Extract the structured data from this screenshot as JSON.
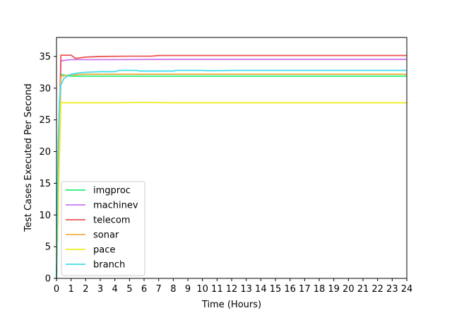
{
  "chart_data": {
    "type": "line",
    "xlabel": "Time (Hours)",
    "ylabel": "Test Cases Executed Per Second",
    "xlim": [
      0,
      24
    ],
    "ylim": [
      0,
      38
    ],
    "xticks": [
      0,
      1,
      2,
      3,
      4,
      5,
      6,
      7,
      8,
      9,
      10,
      11,
      12,
      13,
      14,
      15,
      16,
      17,
      18,
      19,
      20,
      21,
      22,
      23,
      24
    ],
    "yticks": [
      0,
      5,
      10,
      15,
      20,
      25,
      30,
      35
    ],
    "grid": false,
    "legend_position": "lower-left",
    "series": [
      {
        "name": "imgproc",
        "color": "#22ee77",
        "points": [
          [
            0,
            0
          ],
          [
            0.3,
            32.2
          ],
          [
            0.6,
            32.0
          ],
          [
            1,
            31.9
          ],
          [
            2,
            31.9
          ],
          [
            4,
            31.9
          ],
          [
            8,
            31.9
          ],
          [
            12,
            31.9
          ],
          [
            16,
            31.9
          ],
          [
            20,
            31.9
          ],
          [
            24,
            31.9
          ]
        ]
      },
      {
        "name": "machinev",
        "color": "#cc77ee",
        "points": [
          [
            0,
            0
          ],
          [
            0.3,
            34.3
          ],
          [
            0.6,
            34.4
          ],
          [
            1,
            34.5
          ],
          [
            2,
            34.5
          ],
          [
            4,
            34.5
          ],
          [
            8,
            34.55
          ],
          [
            12,
            34.55
          ],
          [
            16,
            34.55
          ],
          [
            20,
            34.55
          ],
          [
            24,
            34.55
          ]
        ]
      },
      {
        "name": "telecom",
        "color": "#ee5555",
        "points": [
          [
            0,
            0
          ],
          [
            0.3,
            35.2
          ],
          [
            0.6,
            35.2
          ],
          [
            1.0,
            35.2
          ],
          [
            1.3,
            34.7
          ],
          [
            2,
            34.9
          ],
          [
            3,
            35.0
          ],
          [
            5,
            35.05
          ],
          [
            6.5,
            35.05
          ],
          [
            7,
            35.15
          ],
          [
            10,
            35.15
          ],
          [
            14,
            35.15
          ],
          [
            18,
            35.15
          ],
          [
            24,
            35.15
          ]
        ]
      },
      {
        "name": "sonar",
        "color": "#f0b040",
        "points": [
          [
            0,
            0
          ],
          [
            0.3,
            31.8
          ],
          [
            0.6,
            32.0
          ],
          [
            1,
            32.1
          ],
          [
            2,
            32.2
          ],
          [
            4,
            32.2
          ],
          [
            8,
            32.2
          ],
          [
            12,
            32.2
          ],
          [
            16,
            32.2
          ],
          [
            20,
            32.2
          ],
          [
            24,
            32.2
          ]
        ]
      },
      {
        "name": "pace",
        "color": "#eeee22",
        "points": [
          [
            0,
            0
          ],
          [
            0.3,
            27.7
          ],
          [
            1,
            27.7
          ],
          [
            4,
            27.7
          ],
          [
            6,
            27.75
          ],
          [
            8,
            27.7
          ],
          [
            12,
            27.7
          ],
          [
            16,
            27.7
          ],
          [
            20,
            27.7
          ],
          [
            24,
            27.7
          ]
        ]
      },
      {
        "name": "branch",
        "color": "#44ddee",
        "points": [
          [
            0,
            0
          ],
          [
            0.1,
            20
          ],
          [
            0.2,
            28
          ],
          [
            0.3,
            30.5
          ],
          [
            0.5,
            31.5
          ],
          [
            0.8,
            32.0
          ],
          [
            1,
            32.2
          ],
          [
            1.5,
            32.4
          ],
          [
            2,
            32.5
          ],
          [
            3,
            32.6
          ],
          [
            4,
            32.6
          ],
          [
            4.3,
            32.8
          ],
          [
            5.5,
            32.8
          ],
          [
            5.7,
            32.7
          ],
          [
            8,
            32.7
          ],
          [
            8.2,
            32.8
          ],
          [
            10,
            32.8
          ],
          [
            10.5,
            32.75
          ],
          [
            12,
            32.8
          ],
          [
            16,
            32.8
          ],
          [
            20,
            32.8
          ],
          [
            24,
            32.8
          ]
        ]
      }
    ]
  }
}
